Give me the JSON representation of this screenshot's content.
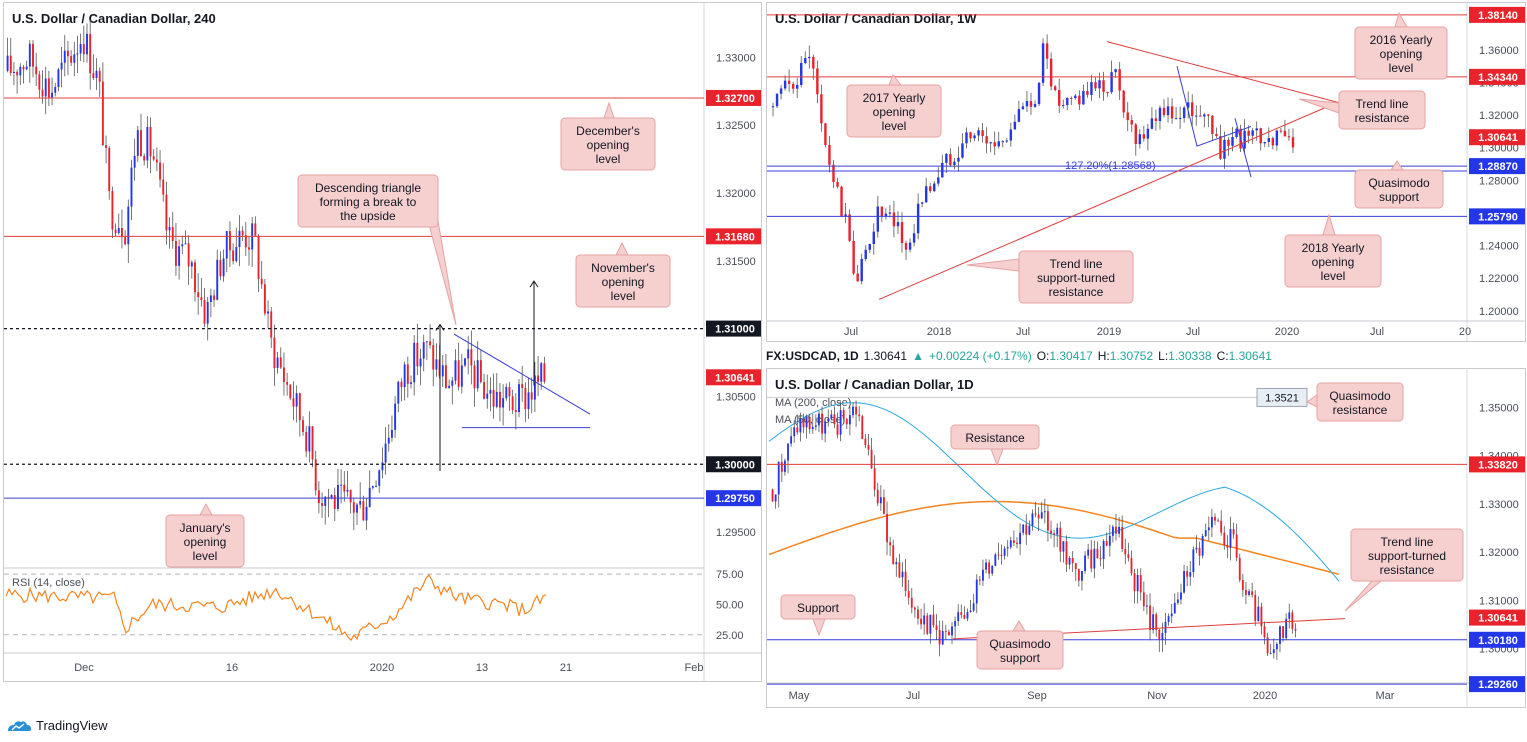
{
  "footer": {
    "brand": "TradingView"
  },
  "infobar": {
    "symbol": "FX:USDCAD, 1D",
    "price": "1.30641",
    "arrow": "▲",
    "change": "+0.00224 (+0.17%)",
    "o_label": "O:",
    "o": "1.30417",
    "h_label": "H:",
    "h": "1.30752",
    "l_label": "L:",
    "l": "1.30338",
    "c_label": "C:",
    "c": "1.30641"
  },
  "colors": {
    "up": "#2336e8",
    "down": "#e8232b",
    "resistance": "#e03c3c",
    "support": "#3a3fd8",
    "annotation_bg": "#f6cfcf",
    "annotation_border": "#e5a3a3",
    "ma200": "#f5841f",
    "ma50": "#2ca8e0",
    "rsi": "#f5841f"
  },
  "chart_data": [
    {
      "id": "h4",
      "type": "candlestick",
      "title": "U.S. Dollar / Canadian Dollar, 240",
      "ylim": [
        1.2925,
        1.334
      ],
      "y_ticks": [
        "1.33000",
        "1.32500",
        "1.32000",
        "1.31500",
        "1.31000",
        "1.30500",
        "1.30000",
        "1.29500"
      ],
      "x_ticks": [
        "Dec",
        "16",
        "2020",
        "13",
        "21",
        "Feb"
      ],
      "levels": [
        {
          "value": 1.327,
          "label": "1.32700",
          "style": "red"
        },
        {
          "value": 1.3168,
          "label": "1.31680",
          "style": "red"
        },
        {
          "value": 1.31,
          "label": "1.31000",
          "style": "dash"
        },
        {
          "value": 1.30641,
          "label": "1.30641",
          "style": "price"
        },
        {
          "value": 1.3,
          "label": "1.30000",
          "style": "dash"
        },
        {
          "value": 1.2975,
          "label": "1.29750",
          "style": "blue"
        }
      ],
      "annotations": [
        {
          "text": [
            "December's",
            "opening",
            "level"
          ]
        },
        {
          "text": [
            "November's",
            "opening",
            "level"
          ]
        },
        {
          "text": [
            "Descending triangle",
            "forming a break to",
            "the upside"
          ]
        },
        {
          "text": [
            "January's",
            "opening",
            "level"
          ]
        }
      ],
      "rsi": {
        "label": "RSI (14, close)",
        "ticks": [
          "75.00",
          "50.00",
          "25.00"
        ],
        "ylim": [
          10,
          80
        ]
      }
    },
    {
      "id": "w1",
      "type": "candlestick",
      "title": "U.S. Dollar / Canadian Dollar, 1W",
      "ylim": [
        1.195,
        1.385
      ],
      "y_ticks": [
        "1.36000",
        "1.34000",
        "1.32000",
        "1.30000",
        "1.28000",
        "1.26000",
        "1.24000",
        "1.22000",
        "1.20000"
      ],
      "x_ticks": [
        "Jul",
        "2018",
        "Jul",
        "2019",
        "Jul",
        "2020",
        "Jul",
        "20"
      ],
      "levels": [
        {
          "value": 1.3814,
          "label": "1.38140",
          "style": "red"
        },
        {
          "value": 1.3434,
          "label": "1.34340",
          "style": "red"
        },
        {
          "value": 1.30641,
          "label": "1.30641",
          "style": "price"
        },
        {
          "value": 1.2887,
          "label": "1.28870",
          "style": "blue"
        },
        {
          "value": 1.2579,
          "label": "1.25790",
          "style": "blue"
        }
      ],
      "fib_label": "127.20%(1.28568)",
      "annotations": [
        {
          "text": [
            "2016 Yearly",
            "opening",
            "level"
          ]
        },
        {
          "text": [
            "2017 Yearly",
            "opening",
            "level"
          ]
        },
        {
          "text": [
            "Trend line",
            "resistance"
          ]
        },
        {
          "text": [
            "Quasimodo",
            "support"
          ]
        },
        {
          "text": [
            "2018 Yearly",
            "opening",
            "level"
          ]
        },
        {
          "text": [
            "Trend line",
            "support-turned",
            "resistance"
          ]
        }
      ]
    },
    {
      "id": "d1",
      "type": "candlestick",
      "title": "U.S. Dollar / Canadian Dollar, 1D",
      "ylim": [
        1.292,
        1.358
      ],
      "y_ticks": [
        "1.35000",
        "1.34000",
        "1.33000",
        "1.32000",
        "1.31000",
        "1.30000"
      ],
      "x_ticks": [
        "May",
        "Jul",
        "Sep",
        "Nov",
        "2020",
        "Mar"
      ],
      "ma_labels": [
        "MA (200, close)",
        "MA (50, close)"
      ],
      "levels": [
        {
          "value": 1.3382,
          "label": "1.33820",
          "style": "red"
        },
        {
          "value": 1.30641,
          "label": "1.30641",
          "style": "price"
        },
        {
          "value": 1.3018,
          "label": "1.30180",
          "style": "blue"
        },
        {
          "value": 1.2926,
          "label": "1.29260",
          "style": "blue"
        }
      ],
      "level_tag": "1.3521",
      "annotations": [
        {
          "text": [
            "Quasimodo",
            "resistance"
          ]
        },
        {
          "text": [
            "Resistance"
          ]
        },
        {
          "text": [
            "Trend line",
            "support-turned",
            "resistance"
          ]
        },
        {
          "text": [
            "Support"
          ]
        },
        {
          "text": [
            "Quasimodo",
            "support"
          ]
        }
      ]
    }
  ]
}
